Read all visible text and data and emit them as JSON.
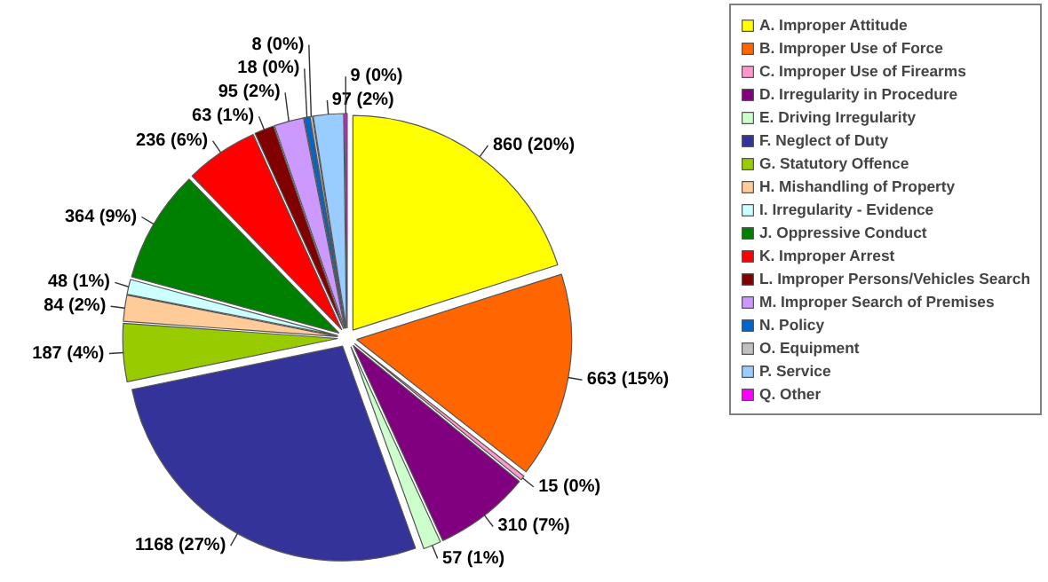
{
  "chart_data": {
    "type": "pie",
    "categories": [
      "A. Improper Attitude",
      "B. Improper Use of Force",
      "C. Improper Use of Firearms",
      "D. Irregularity in Procedure",
      "E. Driving Irregularity",
      "F. Neglect of Duty",
      "G. Statutory Offence",
      "H. Mishandling of Property",
      "I. Irregularity - Evidence",
      "J. Oppressive Conduct",
      "K. Improper Arrest",
      "L. Improper Persons/Vehicles Search",
      "M. Improper Search of Premises",
      "N. Policy",
      "O. Equipment",
      "P. Service",
      "Q. Other"
    ],
    "values": [
      860,
      663,
      15,
      310,
      57,
      1168,
      187,
      84,
      48,
      364,
      236,
      63,
      95,
      18,
      8,
      97,
      9
    ],
    "colors": [
      "#ffff00",
      "#ff6600",
      "#ff99cc",
      "#800080",
      "#ccffcc",
      "#333399",
      "#99cc00",
      "#ffcc99",
      "#ccffff",
      "#008000",
      "#ff0000",
      "#800000",
      "#cc99ff",
      "#0066cc",
      "#c0c0c0",
      "#99ccff",
      "#ff00ff"
    ],
    "value_labels": [
      "860 (20%)",
      "663 (15%)",
      "15 (0%)",
      "310 (7%)",
      "57 (1%)",
      "1168 (27%)",
      "187 (4%)",
      "84 (2%)",
      "48 (1%)",
      "364 (9%)",
      "236 (6%)",
      "63 (1%)",
      "95 (2%)",
      "18 (0%)",
      "8 (0%)",
      "97 (2%)",
      "9 (0%)"
    ],
    "legend": "right"
  }
}
